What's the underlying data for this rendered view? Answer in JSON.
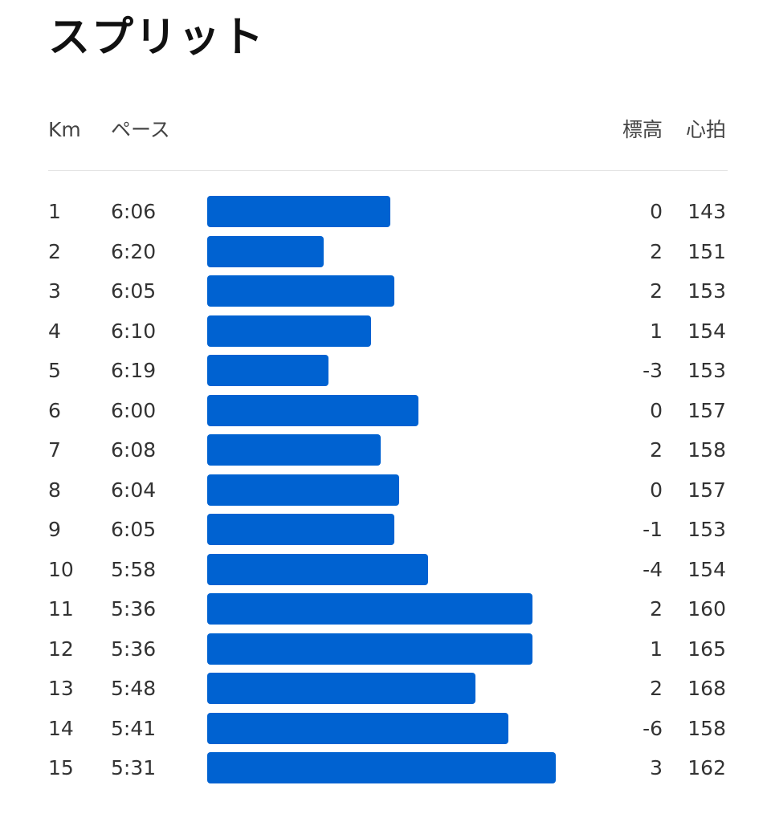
{
  "title": "スプリット",
  "headers": {
    "km": "Km",
    "pace": "ペース",
    "elevation": "標高",
    "heart_rate": "心拍"
  },
  "colors": {
    "bar": "#0062d1",
    "title": "#111111",
    "text": "#333333"
  },
  "splits": [
    {
      "km": "1",
      "pace": "6:06",
      "elevation": "0",
      "heart_rate": "143"
    },
    {
      "km": "2",
      "pace": "6:20",
      "elevation": "2",
      "heart_rate": "151"
    },
    {
      "km": "3",
      "pace": "6:05",
      "elevation": "2",
      "heart_rate": "153"
    },
    {
      "km": "4",
      "pace": "6:10",
      "elevation": "1",
      "heart_rate": "154"
    },
    {
      "km": "5",
      "pace": "6:19",
      "elevation": "-3",
      "heart_rate": "153"
    },
    {
      "km": "6",
      "pace": "6:00",
      "elevation": "0",
      "heart_rate": "157"
    },
    {
      "km": "7",
      "pace": "6:08",
      "elevation": "2",
      "heart_rate": "158"
    },
    {
      "km": "8",
      "pace": "6:04",
      "elevation": "0",
      "heart_rate": "157"
    },
    {
      "km": "9",
      "pace": "6:05",
      "elevation": "-1",
      "heart_rate": "153"
    },
    {
      "km": "10",
      "pace": "5:58",
      "elevation": "-4",
      "heart_rate": "154"
    },
    {
      "km": "11",
      "pace": "5:36",
      "elevation": "2",
      "heart_rate": "160"
    },
    {
      "km": "12",
      "pace": "5:36",
      "elevation": "1",
      "heart_rate": "165"
    },
    {
      "km": "13",
      "pace": "5:48",
      "elevation": "2",
      "heart_rate": "168"
    },
    {
      "km": "14",
      "pace": "5:41",
      "elevation": "-6",
      "heart_rate": "158"
    },
    {
      "km": "15",
      "pace": "5:31",
      "elevation": "3",
      "heart_rate": "162"
    }
  ]
}
